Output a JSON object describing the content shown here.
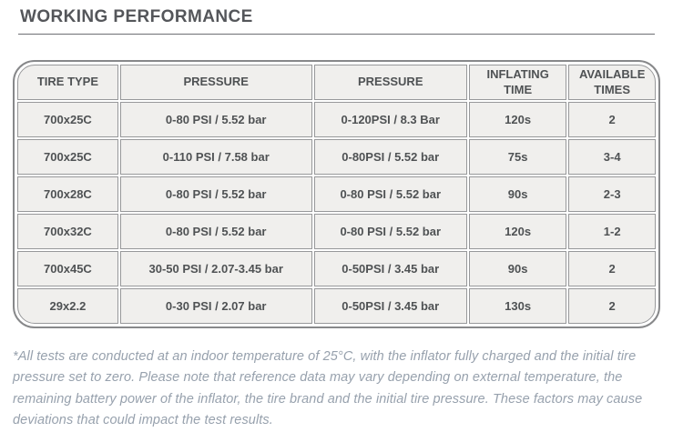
{
  "title": "WORKING PERFORMANCE",
  "table": {
    "headers": [
      "TIRE TYPE",
      "PRESSURE",
      "PRESSURE",
      "INFLATING TIME",
      "AVAILABLE TIMES"
    ],
    "rows": [
      [
        "700x25C",
        "0-80 PSI / 5.52 bar",
        "0-120PSI / 8.3 Bar",
        "120s",
        "2"
      ],
      [
        "700x25C",
        "0-110 PSI / 7.58 bar",
        "0-80PSI / 5.52 bar",
        "75s",
        "3-4"
      ],
      [
        "700x28C",
        "0-80 PSI / 5.52 bar",
        "0-80 PSI / 5.52 bar",
        "90s",
        "2-3"
      ],
      [
        "700x32C",
        "0-80 PSI / 5.52 bar",
        "0-80 PSI / 5.52 bar",
        "120s",
        "1-2"
      ],
      [
        "700x45C",
        "30-50 PSI / 2.07-3.45 bar",
        "0-50PSI / 3.45 bar",
        "90s",
        "2"
      ],
      [
        "29x2.2",
        "0-30 PSI / 2.07 bar",
        "0-50PSI / 3.45 bar",
        "130s",
        "2"
      ]
    ]
  },
  "footnote": "*All tests are conducted at an indoor temperature of 25°C, with the inflator fully charged and the initial tire pressure set to zero. Please note that reference data may vary depending on external temperature, the remaining battery power of the inflator, the tire brand and the initial tire pressure. These factors may cause deviations that could impact the test results.",
  "colors": {
    "title_text": "#54565a",
    "cell_background": "#f0efed",
    "cell_border": "#97989a",
    "outer_border": "#87888a",
    "cell_text": "#4f5254",
    "footnote_text": "#97a1ad"
  }
}
